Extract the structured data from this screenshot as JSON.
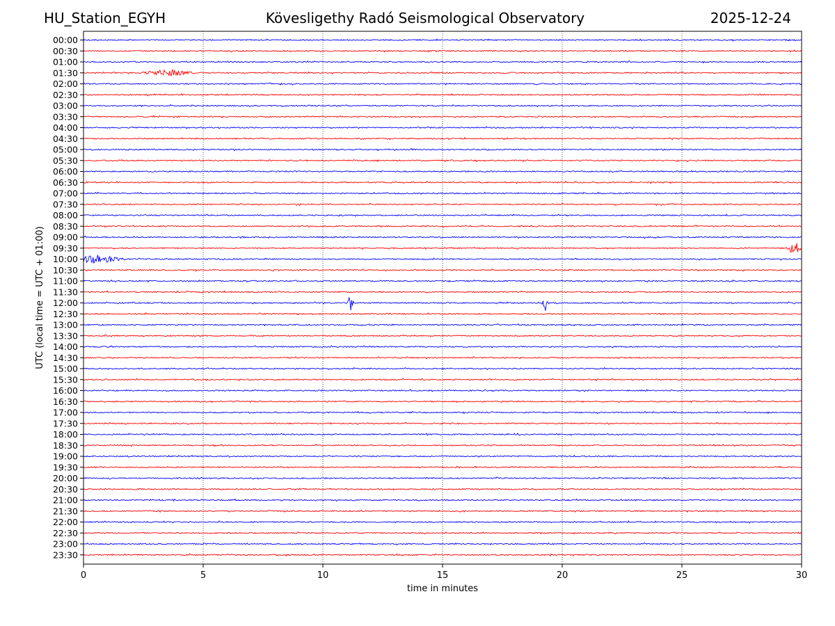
{
  "header": {
    "station": "HU_Station_EGYH",
    "observatory": "Kövesligethy Radó Seismological Observatory",
    "date": "2025-12-24"
  },
  "chart_data": {
    "type": "line",
    "title": "Kövesligethy Radó Seismological Observatory",
    "xlabel": "time in minutes",
    "ylabel": "UTC (local time = UTC + 01:00)",
    "xlim": [
      0,
      30
    ],
    "xticks": [
      0,
      5,
      10,
      15,
      20,
      25,
      30
    ],
    "grid": "vertical dotted lines at each x tick",
    "colors": {
      "even_rows": "#0000ff",
      "odd_rows": "#ff0000"
    },
    "rows": [
      "00:00",
      "00:30",
      "01:00",
      "01:30",
      "02:00",
      "02:30",
      "03:00",
      "03:30",
      "04:00",
      "04:30",
      "05:00",
      "05:30",
      "06:00",
      "06:30",
      "07:00",
      "07:30",
      "08:00",
      "08:30",
      "09:00",
      "09:30",
      "10:00",
      "10:30",
      "11:00",
      "11:30",
      "12:00",
      "12:30",
      "13:00",
      "13:30",
      "14:00",
      "14:30",
      "15:00",
      "15:30",
      "16:00",
      "16:30",
      "17:00",
      "17:30",
      "18:00",
      "18:30",
      "19:00",
      "19:30",
      "20:00",
      "20:30",
      "21:00",
      "21:30",
      "22:00",
      "22:30",
      "23:00",
      "23:30"
    ],
    "events": [
      {
        "row": "09:30",
        "minute": 29.7,
        "amplitude": 2.8,
        "width_min": 0.35
      },
      {
        "row": "10:00",
        "minute": 0.5,
        "amplitude": 1.8,
        "width_min": 1.3
      },
      {
        "row": "12:00",
        "minute": 11.15,
        "amplitude": 4.5,
        "width_min": 0.15
      },
      {
        "row": "12:00",
        "minute": 19.3,
        "amplitude": 3.0,
        "width_min": 0.15
      },
      {
        "row": "01:30",
        "minute": 3.5,
        "amplitude": 1.3,
        "width_min": 1.2
      }
    ]
  }
}
